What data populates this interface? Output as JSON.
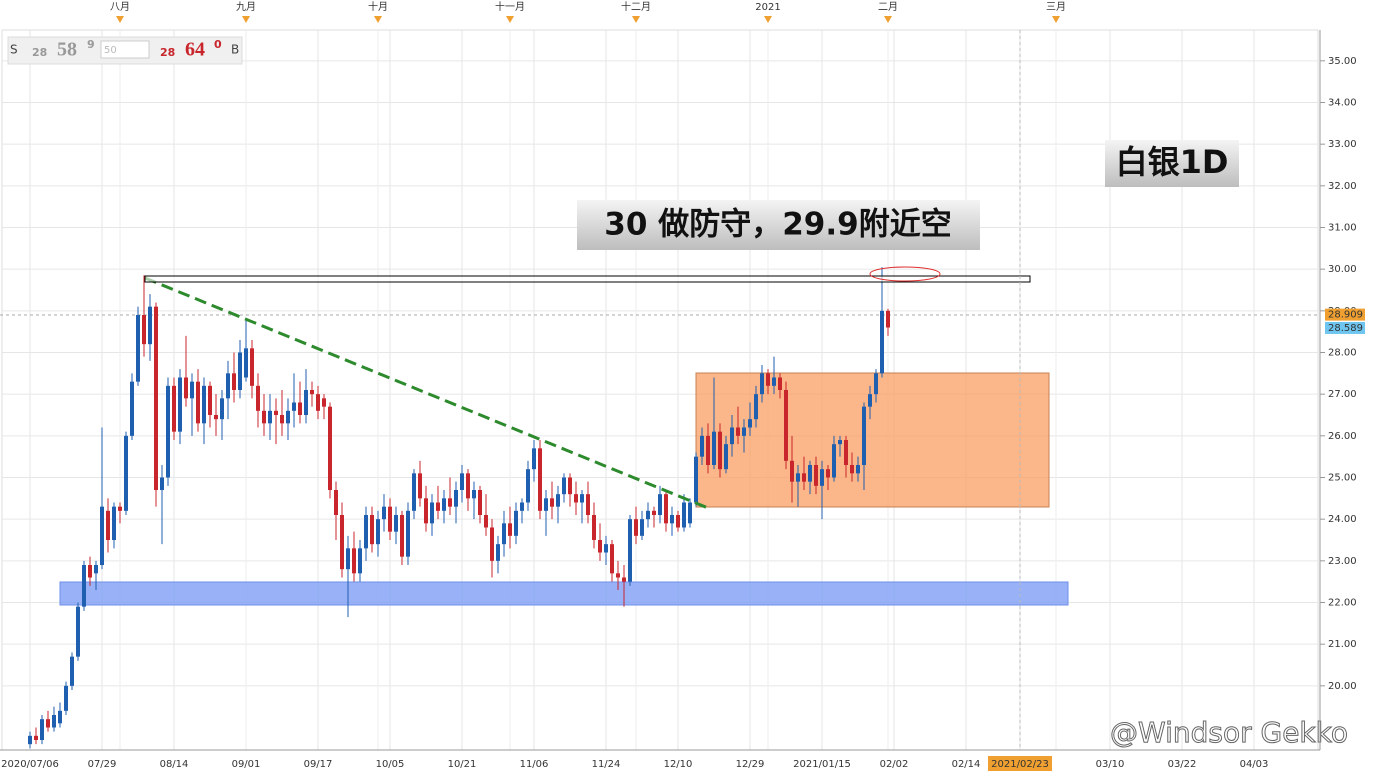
{
  "chart_data": {
    "type": "candlestick",
    "ticker_widget": {
      "side_left": "S",
      "left_small": "28",
      "left_big": "58",
      "left_sup": "9",
      "quantity": "50",
      "right_small": "28",
      "right_big": "64",
      "right_sup": "0",
      "side_right": "B"
    },
    "annotations": [
      "白银1D",
      "30 做防守，29.9附近空"
    ],
    "watermark": "@Windsor Gekko",
    "ylim": [
      18.46,
      35.74
    ],
    "yticks": [
      {
        "value": 20,
        "label": "20.00"
      },
      {
        "value": 21,
        "label": "21.00"
      },
      {
        "value": 22,
        "label": "22.00"
      },
      {
        "value": 23,
        "label": "23.00"
      },
      {
        "value": 24,
        "label": "24.00"
      },
      {
        "value": 25,
        "label": "25.00"
      },
      {
        "value": 26,
        "label": "26.00"
      },
      {
        "value": 27,
        "label": "27.00"
      },
      {
        "value": 28,
        "label": "28.00"
      },
      {
        "value": 29,
        "label": "29.00"
      },
      {
        "value": 30,
        "label": "30.00"
      },
      {
        "value": 31,
        "label": "31.00"
      },
      {
        "value": 32,
        "label": "32.00"
      },
      {
        "value": 33,
        "label": "33.00"
      },
      {
        "value": 34,
        "label": "34.00"
      },
      {
        "value": 35,
        "label": "35.00"
      }
    ],
    "grid": true,
    "up_color": "#1f5fb0",
    "down_color": "#c8262c",
    "price_tags": {
      "values": [
        28.909,
        28.589
      ],
      "colors": [
        "#f0a030",
        "#6ec6f0"
      ]
    },
    "crosshair_index": 165,
    "categories": [
      "2020/07/06",
      null,
      null,
      null,
      null,
      null,
      null,
      null,
      null,
      null,
      null,
      null,
      "07/29",
      null,
      null,
      null,
      null,
      null,
      null,
      null,
      null,
      null,
      null,
      null,
      "08/14",
      null,
      null,
      null,
      null,
      null,
      null,
      null,
      null,
      null,
      null,
      null,
      "09/01",
      null,
      null,
      null,
      null,
      null,
      null,
      null,
      null,
      null,
      null,
      null,
      "09/17",
      null,
      null,
      null,
      null,
      null,
      null,
      null,
      null,
      null,
      null,
      null,
      "10/05",
      null,
      null,
      null,
      null,
      null,
      null,
      null,
      null,
      null,
      null,
      null,
      "10/21",
      null,
      null,
      null,
      null,
      null,
      null,
      null,
      null,
      null,
      null,
      null,
      "11/06",
      null,
      null,
      null,
      null,
      null,
      null,
      null,
      null,
      null,
      null,
      null,
      "11/24",
      null,
      null,
      null,
      null,
      null,
      null,
      null,
      null,
      null,
      null,
      null,
      "12/10",
      null,
      null,
      null,
      null,
      null,
      null,
      null,
      null,
      null,
      null,
      null,
      "12/29",
      null,
      null,
      null,
      null,
      null,
      null,
      null,
      null,
      null,
      null,
      null,
      "2021/01/15",
      null,
      null,
      null,
      null,
      null,
      null,
      null,
      null,
      null,
      null,
      null,
      "02/02",
      null,
      null,
      null,
      null,
      null,
      null,
      null,
      null,
      null,
      null,
      null,
      "02/14",
      null,
      null,
      null,
      null,
      null,
      null,
      null,
      null,
      "2021/02/23",
      null,
      null,
      null,
      null,
      null,
      null,
      null,
      null,
      null,
      null,
      null,
      null,
      null,
      null,
      "03/10",
      null,
      null,
      null,
      null,
      null,
      null,
      null,
      null,
      null,
      null,
      null,
      "03/22",
      null,
      null,
      null,
      null,
      null,
      null,
      null,
      null,
      null,
      null,
      null,
      "04/03"
    ],
    "month_labels": [
      null,
      null,
      null,
      null,
      null,
      null,
      null,
      null,
      null,
      null,
      null,
      null,
      null,
      null,
      null,
      "八月",
      null,
      null,
      null,
      null,
      null,
      null,
      null,
      null,
      null,
      null,
      null,
      null,
      null,
      null,
      null,
      null,
      null,
      null,
      null,
      null,
      "九月",
      null,
      null,
      null,
      null,
      null,
      null,
      null,
      null,
      null,
      null,
      null,
      null,
      null,
      null,
      null,
      null,
      null,
      null,
      null,
      null,
      null,
      "十月",
      null,
      null,
      null,
      null,
      null,
      null,
      null,
      null,
      null,
      null,
      null,
      null,
      null,
      null,
      null,
      null,
      null,
      null,
      null,
      null,
      null,
      "十一月",
      null,
      null,
      null,
      null,
      null,
      null,
      null,
      null,
      null,
      null,
      null,
      null,
      null,
      null,
      null,
      null,
      null,
      null,
      null,
      null,
      "十二月",
      null,
      null,
      null,
      null,
      null,
      null,
      null,
      null,
      null,
      null,
      null,
      null,
      null,
      null,
      null,
      null,
      null,
      null,
      null,
      null,
      null,
      "2021",
      null,
      null,
      null,
      null,
      null,
      null,
      null,
      null,
      null,
      null,
      null,
      null,
      null,
      null,
      null,
      null,
      null,
      null,
      null,
      "二月",
      null,
      null,
      null,
      null,
      null,
      null,
      null,
      null,
      null,
      null,
      null,
      null,
      null,
      null,
      null,
      null,
      null,
      null,
      null,
      null,
      null,
      null,
      null,
      null,
      null,
      null,
      null,
      "三月",
      null,
      null,
      null,
      null,
      null,
      null,
      null,
      null,
      null,
      null,
      null,
      null,
      null,
      null,
      null,
      null,
      null,
      null,
      null,
      null,
      null,
      null,
      null,
      null,
      null,
      null,
      null,
      null,
      null,
      null,
      null,
      null,
      null
    ],
    "candles": [
      [
        18.6,
        18.9,
        18.5,
        18.8
      ],
      [
        18.8,
        19.0,
        18.6,
        18.7
      ],
      [
        18.7,
        19.3,
        18.6,
        19.2
      ],
      [
        19.2,
        19.4,
        18.9,
        19.0
      ],
      [
        19.0,
        19.5,
        18.9,
        19.3
      ],
      [
        19.1,
        19.6,
        19.0,
        19.4
      ],
      [
        19.4,
        20.1,
        19.3,
        20.0
      ],
      [
        20.0,
        20.8,
        19.9,
        20.7
      ],
      [
        20.7,
        22.0,
        20.6,
        21.9
      ],
      [
        21.9,
        23.0,
        21.8,
        22.9
      ],
      [
        22.9,
        23.1,
        22.4,
        22.6
      ],
      [
        22.7,
        23.0,
        22.3,
        22.9
      ],
      [
        22.9,
        26.2,
        22.8,
        24.3
      ],
      [
        24.2,
        24.5,
        23.2,
        23.5
      ],
      [
        23.5,
        24.4,
        23.3,
        24.3
      ],
      [
        24.3,
        24.4,
        23.9,
        24.2
      ],
      [
        24.2,
        26.1,
        24.1,
        26.0
      ],
      [
        26.0,
        27.5,
        25.9,
        27.3
      ],
      [
        27.3,
        29.1,
        27.2,
        28.9
      ],
      [
        28.9,
        29.85,
        27.9,
        28.2
      ],
      [
        28.2,
        29.4,
        27.8,
        29.1
      ],
      [
        29.1,
        29.2,
        24.3,
        24.7
      ],
      [
        24.7,
        25.3,
        23.4,
        25.0
      ],
      [
        25.0,
        27.4,
        24.8,
        27.2
      ],
      [
        27.2,
        27.4,
        25.9,
        26.1
      ],
      [
        26.1,
        27.6,
        25.8,
        27.4
      ],
      [
        27.4,
        28.4,
        26.7,
        26.9
      ],
      [
        26.9,
        27.5,
        26.0,
        27.3
      ],
      [
        27.3,
        27.6,
        26.1,
        26.3
      ],
      [
        26.3,
        27.4,
        25.8,
        27.2
      ],
      [
        27.2,
        27.3,
        26.2,
        26.5
      ],
      [
        26.5,
        27.0,
        26.0,
        26.4
      ],
      [
        26.4,
        27.1,
        25.9,
        26.9
      ],
      [
        26.9,
        27.8,
        26.4,
        27.5
      ],
      [
        27.5,
        28.0,
        26.8,
        27.1
      ],
      [
        27.1,
        28.3,
        26.9,
        28.0
      ],
      [
        27.4,
        28.8,
        27.3,
        28.1
      ],
      [
        28.1,
        28.3,
        26.9,
        27.2
      ],
      [
        27.2,
        27.5,
        26.2,
        26.6
      ],
      [
        26.6,
        27.0,
        26.0,
        26.3
      ],
      [
        26.3,
        27.0,
        25.9,
        26.6
      ],
      [
        26.6,
        26.9,
        25.8,
        26.5
      ],
      [
        26.5,
        27.1,
        26.0,
        26.3
      ],
      [
        26.3,
        26.9,
        25.9,
        26.6
      ],
      [
        26.6,
        27.5,
        26.2,
        26.8
      ],
      [
        26.8,
        27.3,
        26.3,
        26.5
      ],
      [
        26.5,
        27.6,
        26.3,
        27.1
      ],
      [
        27.1,
        27.3,
        26.7,
        27.0
      ],
      [
        27.0,
        27.2,
        26.4,
        26.6
      ],
      [
        26.9,
        27.0,
        26.4,
        26.7
      ],
      [
        26.7,
        26.8,
        24.5,
        24.7
      ],
      [
        24.7,
        24.9,
        23.5,
        24.1
      ],
      [
        24.1,
        24.4,
        22.6,
        22.8
      ],
      [
        22.8,
        23.6,
        21.65,
        23.3
      ],
      [
        23.3,
        23.7,
        22.5,
        22.7
      ],
      [
        22.7,
        23.5,
        22.5,
        23.3
      ],
      [
        23.3,
        24.3,
        23.0,
        24.1
      ],
      [
        24.1,
        24.3,
        23.2,
        23.4
      ],
      [
        23.4,
        24.2,
        23.1,
        24.0
      ],
      [
        24.0,
        24.6,
        23.7,
        24.3
      ],
      [
        24.3,
        24.5,
        23.5,
        23.7
      ],
      [
        23.7,
        24.3,
        23.4,
        24.1
      ],
      [
        24.1,
        24.2,
        22.9,
        23.1
      ],
      [
        23.1,
        24.4,
        22.9,
        24.2
      ],
      [
        24.2,
        25.2,
        24.0,
        25.1
      ],
      [
        25.1,
        25.4,
        24.3,
        24.5
      ],
      [
        24.5,
        24.8,
        23.7,
        23.9
      ],
      [
        23.9,
        24.6,
        23.6,
        24.4
      ],
      [
        24.4,
        24.8,
        24.0,
        24.2
      ],
      [
        24.2,
        24.7,
        23.9,
        24.5
      ],
      [
        24.5,
        25.0,
        24.1,
        24.3
      ],
      [
        24.3,
        24.9,
        23.9,
        24.7
      ],
      [
        24.7,
        25.3,
        24.4,
        25.1
      ],
      [
        25.1,
        25.2,
        24.2,
        24.5
      ],
      [
        24.5,
        24.9,
        24.0,
        24.7
      ],
      [
        24.7,
        24.8,
        23.9,
        24.1
      ],
      [
        24.1,
        24.6,
        23.6,
        23.8
      ],
      [
        23.8,
        24.0,
        22.6,
        23.0
      ],
      [
        23.0,
        23.6,
        22.7,
        23.4
      ],
      [
        23.4,
        24.2,
        23.1,
        23.9
      ],
      [
        23.9,
        24.3,
        23.3,
        23.6
      ],
      [
        23.6,
        24.4,
        23.4,
        24.2
      ],
      [
        24.2,
        24.5,
        23.9,
        24.4
      ],
      [
        24.4,
        25.4,
        24.2,
        25.2
      ],
      [
        25.2,
        25.9,
        24.9,
        25.7
      ],
      [
        25.7,
        25.9,
        24.0,
        24.2
      ],
      [
        24.2,
        24.7,
        23.6,
        24.5
      ],
      [
        24.5,
        24.9,
        24.0,
        24.3
      ],
      [
        24.3,
        24.8,
        23.9,
        24.6
      ],
      [
        24.6,
        25.1,
        24.4,
        25.0
      ],
      [
        25.0,
        25.1,
        24.3,
        24.6
      ],
      [
        24.6,
        24.9,
        24.1,
        24.4
      ],
      [
        24.4,
        24.7,
        23.9,
        24.6
      ],
      [
        24.6,
        24.9,
        23.9,
        24.1
      ],
      [
        24.1,
        24.4,
        23.3,
        23.5
      ],
      [
        23.5,
        23.9,
        23.0,
        23.2
      ],
      [
        23.2,
        23.6,
        22.9,
        23.4
      ],
      [
        23.4,
        23.5,
        22.5,
        22.7
      ],
      [
        22.7,
        23.0,
        22.3,
        22.6
      ],
      [
        22.6,
        22.9,
        21.9,
        22.5
      ],
      [
        22.5,
        24.1,
        22.4,
        24.0
      ],
      [
        24.0,
        24.3,
        23.4,
        23.6
      ],
      [
        23.6,
        24.2,
        23.5,
        24.0
      ],
      [
        24.0,
        24.4,
        23.8,
        24.2
      ],
      [
        24.2,
        24.3,
        23.8,
        24.1
      ],
      [
        24.1,
        24.8,
        23.9,
        24.6
      ],
      [
        24.6,
        24.7,
        23.7,
        23.9
      ],
      [
        23.9,
        24.3,
        23.6,
        24.1
      ],
      [
        24.1,
        24.2,
        23.7,
        23.8
      ],
      [
        23.8,
        24.6,
        23.7,
        24.4
      ],
      [
        23.9,
        24.5,
        23.8,
        24.4
      ],
      [
        24.4,
        25.6,
        24.3,
        25.5
      ],
      [
        25.5,
        26.2,
        25.3,
        26.0
      ],
      [
        26.0,
        26.3,
        25.1,
        25.3
      ],
      [
        25.3,
        27.4,
        25.2,
        26.1
      ],
      [
        26.1,
        26.3,
        25.0,
        25.2
      ],
      [
        25.2,
        26.0,
        25.1,
        25.8
      ],
      [
        25.8,
        26.5,
        25.5,
        26.2
      ],
      [
        26.2,
        26.7,
        25.8,
        26.0
      ],
      [
        26.0,
        26.4,
        25.6,
        26.2
      ],
      [
        26.2,
        26.8,
        26.0,
        26.4
      ],
      [
        26.4,
        27.2,
        26.2,
        27.0
      ],
      [
        27.0,
        27.7,
        26.8,
        27.5
      ],
      [
        27.5,
        27.6,
        27.0,
        27.2
      ],
      [
        27.2,
        27.9,
        27.0,
        27.4
      ],
      [
        27.4,
        27.5,
        26.9,
        27.1
      ],
      [
        27.1,
        27.3,
        25.2,
        25.4
      ],
      [
        25.4,
        26.0,
        24.4,
        24.9
      ],
      [
        24.9,
        25.3,
        24.3,
        25.1
      ],
      [
        25.1,
        25.5,
        24.7,
        24.9
      ],
      [
        24.9,
        25.4,
        24.6,
        25.3
      ],
      [
        25.3,
        25.5,
        24.6,
        24.8
      ],
      [
        24.8,
        25.4,
        24.0,
        25.2
      ],
      [
        25.2,
        25.3,
        24.7,
        25.0
      ],
      [
        25.0,
        26.0,
        24.9,
        25.8
      ],
      [
        25.8,
        26.0,
        25.5,
        25.9
      ],
      [
        25.9,
        26.0,
        25.0,
        25.3
      ],
      [
        25.3,
        25.6,
        24.9,
        25.1
      ],
      [
        25.1,
        25.5,
        24.9,
        25.3
      ],
      [
        25.3,
        26.8,
        24.7,
        26.7
      ],
      [
        26.7,
        27.2,
        26.4,
        27.0
      ],
      [
        27.0,
        27.6,
        26.8,
        27.5
      ],
      [
        27.5,
        30.05,
        27.4,
        29.0
      ],
      [
        29.0,
        29.05,
        28.4,
        28.6
      ],
      null,
      null,
      null,
      null,
      null,
      null,
      null,
      null,
      null,
      null,
      null,
      null,
      null,
      null,
      null,
      null,
      null,
      null,
      null,
      null,
      null,
      null,
      null,
      null,
      null,
      null,
      null,
      null,
      null,
      null,
      null,
      null,
      null,
      null,
      null,
      null,
      null,
      null,
      null,
      null,
      null,
      null,
      null,
      null,
      null,
      null,
      null,
      null,
      null,
      null,
      null,
      null,
      null,
      null,
      null,
      null,
      null,
      null,
      null,
      null,
      null
    ]
  }
}
